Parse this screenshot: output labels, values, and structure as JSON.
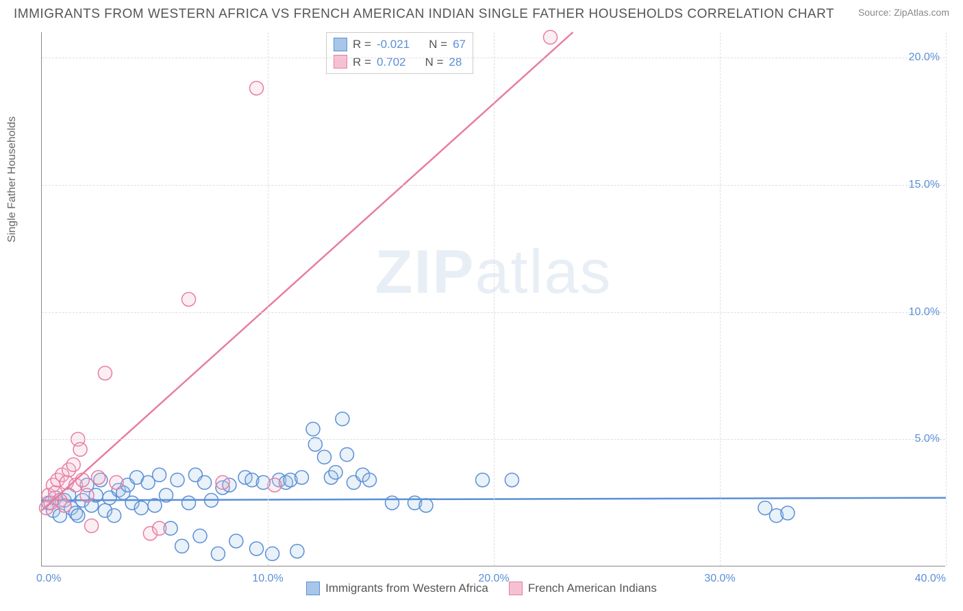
{
  "title": "IMMIGRANTS FROM WESTERN AFRICA VS FRENCH AMERICAN INDIAN SINGLE FATHER HOUSEHOLDS CORRELATION CHART",
  "source": "Source: ZipAtlas.com",
  "watermark_a": "ZIP",
  "watermark_b": "atlas",
  "y_axis_label": "Single Father Households",
  "chart": {
    "type": "scatter",
    "xlim": [
      0,
      40
    ],
    "ylim": [
      0,
      21
    ],
    "x_ticks": [
      0,
      10,
      20,
      30,
      40
    ],
    "y_ticks": [
      5,
      10,
      15,
      20
    ],
    "x_tick_labels": [
      "0.0%",
      "10.0%",
      "20.0%",
      "30.0%",
      "40.0%"
    ],
    "y_tick_labels": [
      "5.0%",
      "10.0%",
      "15.0%",
      "20.0%"
    ],
    "grid_color": "#dddddd",
    "background_color": "#ffffff",
    "axis_color": "#888888",
    "tick_label_color": "#5a8fd6",
    "marker_radius": 10,
    "marker_stroke_width": 1.5,
    "marker_fill_opacity": 0.25,
    "trend_line_width": 2.5,
    "series": [
      {
        "name": "Immigrants from Western Africa",
        "color_stroke": "#5a8fd6",
        "color_fill": "#a8c6e8",
        "R": "-0.021",
        "N": "67",
        "trend": {
          "x1": 0,
          "y1": 2.6,
          "x2": 40,
          "y2": 2.7
        },
        "points": [
          [
            0.3,
            2.5
          ],
          [
            0.5,
            2.2
          ],
          [
            0.6,
            2.7
          ],
          [
            0.8,
            2.0
          ],
          [
            1.0,
            2.6
          ],
          [
            1.2,
            2.8
          ],
          [
            1.3,
            2.3
          ],
          [
            1.5,
            2.1
          ],
          [
            1.6,
            2.0
          ],
          [
            1.8,
            2.6
          ],
          [
            2.0,
            3.2
          ],
          [
            2.2,
            2.4
          ],
          [
            2.4,
            2.8
          ],
          [
            2.6,
            3.4
          ],
          [
            2.8,
            2.2
          ],
          [
            3.0,
            2.7
          ],
          [
            3.2,
            2.0
          ],
          [
            3.4,
            3.0
          ],
          [
            3.6,
            2.9
          ],
          [
            3.8,
            3.2
          ],
          [
            4.0,
            2.5
          ],
          [
            4.2,
            3.5
          ],
          [
            4.4,
            2.3
          ],
          [
            4.7,
            3.3
          ],
          [
            5.0,
            2.4
          ],
          [
            5.2,
            3.6
          ],
          [
            5.5,
            2.8
          ],
          [
            5.7,
            1.5
          ],
          [
            6.0,
            3.4
          ],
          [
            6.2,
            0.8
          ],
          [
            6.5,
            2.5
          ],
          [
            6.8,
            3.6
          ],
          [
            7.0,
            1.2
          ],
          [
            7.2,
            3.3
          ],
          [
            7.5,
            2.6
          ],
          [
            7.8,
            0.5
          ],
          [
            8.0,
            3.1
          ],
          [
            8.3,
            3.2
          ],
          [
            8.6,
            1.0
          ],
          [
            9.0,
            3.5
          ],
          [
            9.3,
            3.4
          ],
          [
            9.5,
            0.7
          ],
          [
            9.8,
            3.3
          ],
          [
            10.2,
            0.5
          ],
          [
            10.5,
            3.4
          ],
          [
            10.8,
            3.3
          ],
          [
            11.0,
            3.4
          ],
          [
            11.3,
            0.6
          ],
          [
            11.5,
            3.5
          ],
          [
            12.0,
            5.4
          ],
          [
            12.1,
            4.8
          ],
          [
            12.5,
            4.3
          ],
          [
            12.8,
            3.5
          ],
          [
            13.0,
            3.7
          ],
          [
            13.3,
            5.8
          ],
          [
            13.5,
            4.4
          ],
          [
            13.8,
            3.3
          ],
          [
            14.2,
            3.6
          ],
          [
            14.5,
            3.4
          ],
          [
            15.5,
            2.5
          ],
          [
            16.5,
            2.5
          ],
          [
            17.0,
            2.4
          ],
          [
            19.5,
            3.4
          ],
          [
            20.8,
            3.4
          ],
          [
            32.0,
            2.3
          ],
          [
            32.5,
            2.0
          ],
          [
            33.0,
            2.1
          ]
        ]
      },
      {
        "name": "French American Indians",
        "color_stroke": "#e87ca0",
        "color_fill": "#f5c1d2",
        "R": "0.702",
        "N": "28",
        "trend": {
          "x1": 0,
          "y1": 2.2,
          "x2": 23.5,
          "y2": 21.0
        },
        "points": [
          [
            0.2,
            2.3
          ],
          [
            0.3,
            2.8
          ],
          [
            0.4,
            2.5
          ],
          [
            0.5,
            3.2
          ],
          [
            0.6,
            2.9
          ],
          [
            0.7,
            3.4
          ],
          [
            0.8,
            2.6
          ],
          [
            0.9,
            3.6
          ],
          [
            1.0,
            2.4
          ],
          [
            1.1,
            3.3
          ],
          [
            1.2,
            3.8
          ],
          [
            1.4,
            4.0
          ],
          [
            1.5,
            3.2
          ],
          [
            1.6,
            5.0
          ],
          [
            1.7,
            4.6
          ],
          [
            1.8,
            3.4
          ],
          [
            2.0,
            2.8
          ],
          [
            2.2,
            1.6
          ],
          [
            2.5,
            3.5
          ],
          [
            2.8,
            7.6
          ],
          [
            3.3,
            3.3
          ],
          [
            4.8,
            1.3
          ],
          [
            5.2,
            1.5
          ],
          [
            6.5,
            10.5
          ],
          [
            8.0,
            3.3
          ],
          [
            9.5,
            18.8
          ],
          [
            10.3,
            3.2
          ],
          [
            22.5,
            20.8
          ]
        ]
      }
    ],
    "legend_stats_rows": [
      {
        "swatch_fill": "#a8c6e8",
        "swatch_stroke": "#5a8fd6",
        "r_label": "R =",
        "r_val": "-0.021",
        "n_label": "N =",
        "n_val": "67"
      },
      {
        "swatch_fill": "#f5c1d2",
        "swatch_stroke": "#e87ca0",
        "r_label": "R =",
        "r_val": " 0.702",
        "n_label": "N =",
        "n_val": "28"
      }
    ],
    "bottom_legend": [
      {
        "swatch_fill": "#a8c6e8",
        "swatch_stroke": "#5a8fd6",
        "label": "Immigrants from Western Africa"
      },
      {
        "swatch_fill": "#f5c1d2",
        "swatch_stroke": "#e87ca0",
        "label": "French American Indians"
      }
    ]
  }
}
